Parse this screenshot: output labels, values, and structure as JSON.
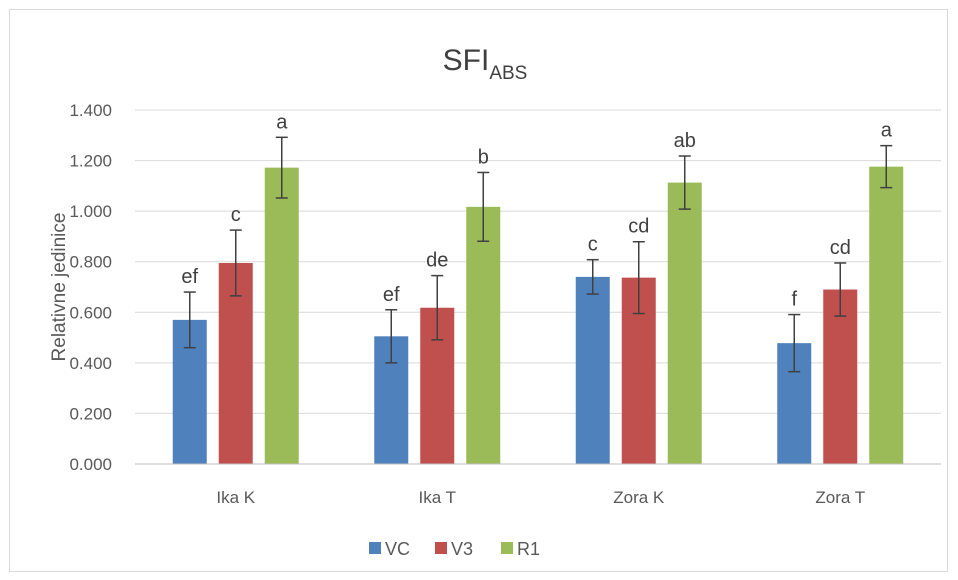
{
  "chart_data": {
    "type": "bar",
    "title": "SFI",
    "title_subscript": "ABS",
    "xlabel": "",
    "ylabel": "Relativne jedinice",
    "ylim": [
      0,
      1.4
    ],
    "yticks": [
      "0.000",
      "0.200",
      "0.400",
      "0.600",
      "0.800",
      "1.000",
      "1.200",
      "1.400"
    ],
    "categories": [
      "Ika K",
      "Ika T",
      "Zora K",
      "Zora T"
    ],
    "grid": true,
    "legend_position": "bottom",
    "series": [
      {
        "name": "VC",
        "color": "#4f81bd",
        "values": [
          0.57,
          0.505,
          0.74,
          0.478
        ],
        "errors": [
          0.11,
          0.105,
          0.068,
          0.113
        ],
        "letters": [
          "ef",
          "ef",
          "c",
          "f"
        ]
      },
      {
        "name": "V3",
        "color": "#c0504d",
        "values": [
          0.795,
          0.618,
          0.737,
          0.69
        ],
        "errors": [
          0.13,
          0.127,
          0.142,
          0.105
        ],
        "letters": [
          "c",
          "de",
          "cd",
          "cd"
        ]
      },
      {
        "name": "R1",
        "color": "#9bbb59",
        "values": [
          1.172,
          1.017,
          1.113,
          1.176
        ],
        "errors": [
          0.12,
          0.136,
          0.105,
          0.083
        ],
        "letters": [
          "a",
          "b",
          "ab",
          "a"
        ]
      }
    ]
  }
}
